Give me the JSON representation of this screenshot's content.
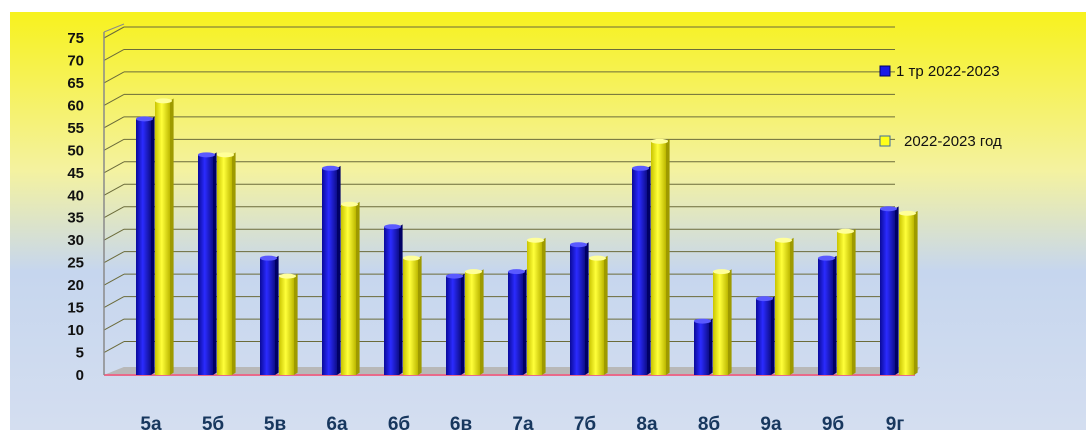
{
  "chart_data": {
    "type": "bar",
    "categories": [
      "5а",
      "5б",
      "5в",
      "6а",
      "6б",
      "6в",
      "7а",
      "7б",
      "8а",
      "8б",
      "9а",
      "9б",
      "9г"
    ],
    "series": [
      {
        "name": "1 тр 2022-2023",
        "values": [
          57,
          49,
          26,
          46,
          33,
          22,
          23,
          29,
          46,
          12,
          17,
          26,
          37
        ],
        "color": "#1a1ae6"
      },
      {
        "name": "2022-2023 год",
        "values": [
          61,
          49,
          22,
          38,
          26,
          23,
          30,
          26,
          52,
          23,
          30,
          32,
          36
        ],
        "color": "#ffff1a"
      }
    ],
    "ylim": [
      0,
      75
    ],
    "yticks": [
      0,
      5,
      10,
      15,
      20,
      25,
      30,
      35,
      40,
      45,
      50,
      55,
      60,
      65,
      70,
      75
    ],
    "title": "",
    "xlabel": "",
    "ylabel": "",
    "grid": true,
    "legend": "right"
  },
  "colors": {
    "background_top": "#f7f21e",
    "background_bottom": "#c6d6ee",
    "gridline": "#6b6b3a",
    "floor": "#c0c0c0",
    "floor_edge": "#e86a8a"
  }
}
